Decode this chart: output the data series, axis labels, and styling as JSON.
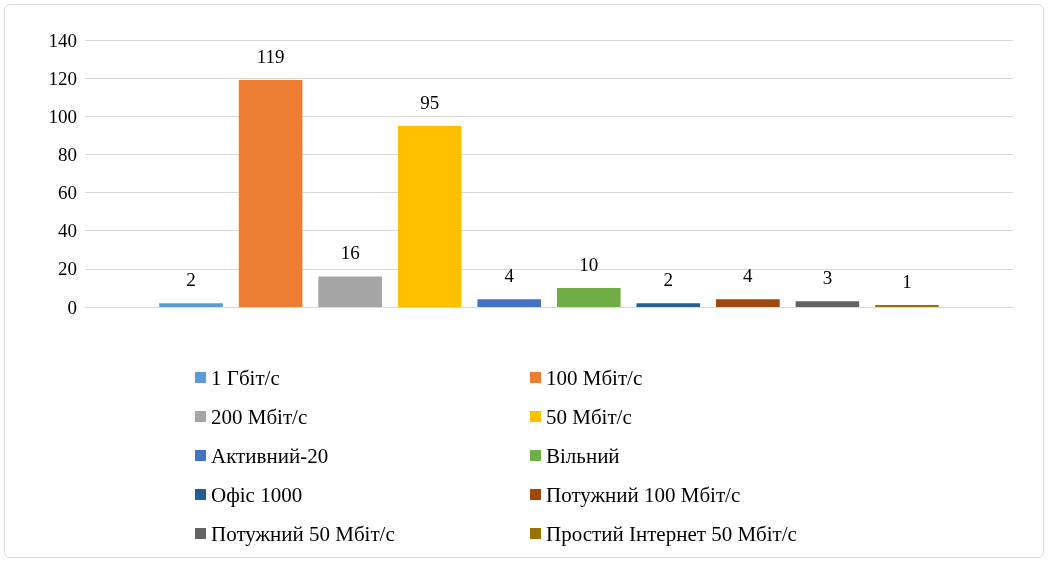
{
  "chart_data": {
    "type": "bar",
    "categories": [
      null
    ],
    "series": [
      {
        "name": "1 Гбіт/с",
        "color": "#5b9bd5",
        "values": [
          2
        ]
      },
      {
        "name": "100 Мбіт/с",
        "color": "#ed7d31",
        "values": [
          119
        ]
      },
      {
        "name": "200 Мбіт/с",
        "color": "#a5a5a5",
        "values": [
          16
        ]
      },
      {
        "name": "50 Мбіт/с",
        "color": "#ffc000",
        "values": [
          95
        ]
      },
      {
        "name": "Активний-20",
        "color": "#4472c4",
        "values": [
          4
        ]
      },
      {
        "name": "Вільний",
        "color": "#70ad47",
        "values": [
          10
        ]
      },
      {
        "name": "Офіс 1000",
        "color": "#255e91",
        "values": [
          2
        ]
      },
      {
        "name": "Потужний 100 Мбіт/с",
        "color": "#9e480e",
        "values": [
          4
        ]
      },
      {
        "name": "Потужний 50 Мбіт/с",
        "color": "#636363",
        "values": [
          3
        ]
      },
      {
        "name": "Простий Інтернет 50 Мбіт/с",
        "color": "#997300",
        "values": [
          1
        ]
      }
    ],
    "ylim": [
      0,
      140
    ],
    "yticks": [
      0,
      20,
      40,
      60,
      80,
      100,
      120,
      140
    ],
    "grid": "y",
    "legend": "bottom",
    "data_labels": true
  }
}
